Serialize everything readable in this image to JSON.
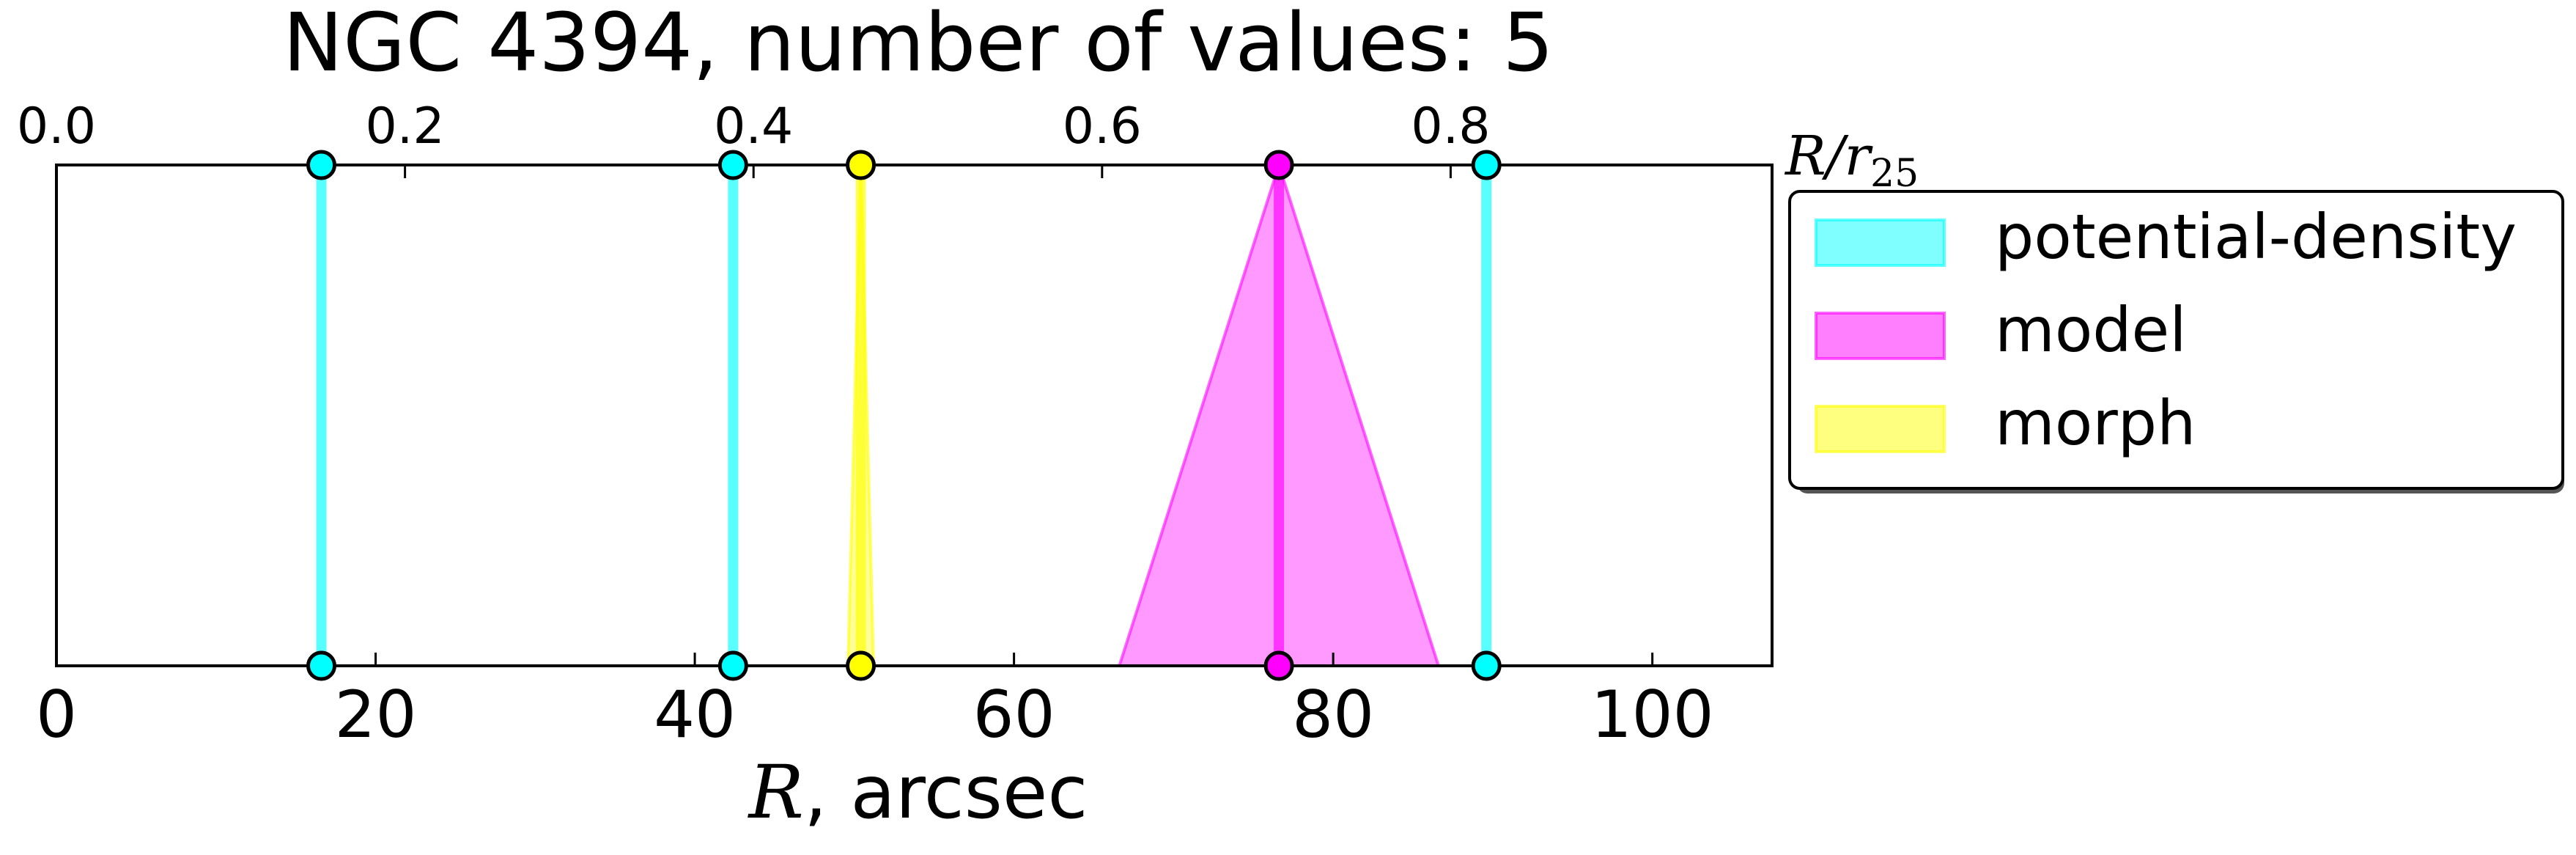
{
  "chart_data": {
    "type": "range_markers",
    "title": "NGC 4394, number of values: 5",
    "xlabel_italic": "R",
    "xlabel_rest": ", arcsec",
    "xlim": [
      0,
      107.5
    ],
    "xticks": [
      0,
      20,
      40,
      60,
      80,
      100
    ],
    "xtick_labels": [
      "0",
      "20",
      "40",
      "60",
      "80",
      "100"
    ],
    "top_axis": {
      "label_italic": "R/r",
      "label_sub": "25",
      "ticks": [
        0.0,
        0.2,
        0.4,
        0.6,
        0.8
      ],
      "tick_labels": [
        "0.0",
        "0.2",
        "0.4",
        "0.6",
        "0.8"
      ],
      "r25_arcsec": 109.2
    },
    "legend": {
      "position": "right",
      "entries": [
        {
          "label": "potential-density",
          "color": "#00ffff"
        },
        {
          "label": "model",
          "color": "#ff00ff"
        },
        {
          "label": "morph",
          "color": "#ffff00"
        }
      ]
    },
    "series": [
      {
        "name": "potential-density",
        "color": "#00ffff",
        "values": [
          {
            "x": 16.6,
            "err": 0
          },
          {
            "x": 42.4,
            "err": 0
          },
          {
            "x": 89.6,
            "err": 0
          }
        ]
      },
      {
        "name": "model",
        "color": "#ff00ff",
        "values": [
          {
            "x": 76.6,
            "err": 10
          }
        ]
      },
      {
        "name": "morph",
        "color": "#ffff00",
        "values": [
          {
            "x": 50.4,
            "err": 0.8
          }
        ]
      }
    ]
  }
}
